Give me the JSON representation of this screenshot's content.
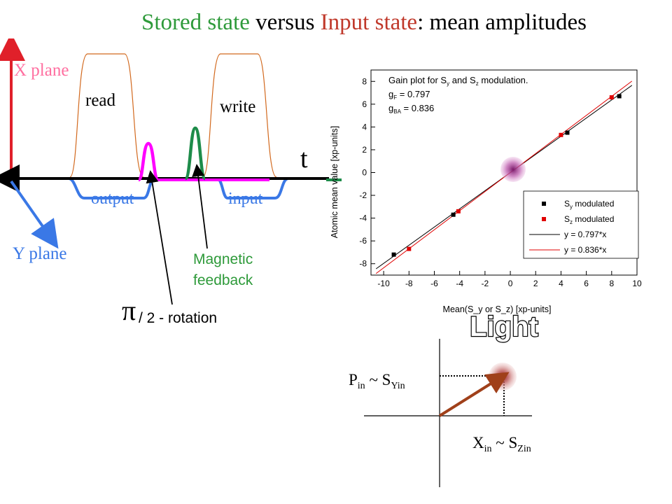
{
  "title": {
    "part1": "Stored state",
    "part2": " versus ",
    "part3": "Input state",
    "part4": ": mean amplitudes"
  },
  "left_diagram": {
    "x_plane": "X plane",
    "y_plane": "Y plane",
    "read": "read",
    "write": "write",
    "t": "t",
    "output": "output",
    "input": "input",
    "magnetic_line1": "Magnetic",
    "magnetic_line2": "feedback",
    "pi_symbol": "π",
    "rotation": "/ 2 - rotation",
    "colors": {
      "x_axis": "#e0202a",
      "y_axis": "#3a78e6",
      "pulse": "#d2691e",
      "pi_pulse": "#ff00ff",
      "feedback_pulse": "#1e8c4a",
      "x_label": "#ff6fa0",
      "y_label": "#3a78e6",
      "green_label": "#2e9a3a"
    }
  },
  "chart_data": {
    "type": "scatter",
    "xlabel": "Mean(S_y or S_z) [xp-units]",
    "ylabel": "Atomic mean value [xp-units]",
    "xlim": [
      -11,
      10
    ],
    "ylim": [
      -9,
      9
    ],
    "x_ticks": [
      -10,
      -8,
      -6,
      -4,
      -2,
      0,
      2,
      4,
      6,
      8,
      10
    ],
    "y_ticks": [
      -8,
      -6,
      -4,
      -2,
      0,
      2,
      4,
      6,
      8
    ],
    "annotation": {
      "line1": "Gain plot for S",
      "line1_sub1": "y",
      "line1_mid": " and S",
      "line1_sub2": "z",
      "line1_end": " modulation.",
      "line2": "g",
      "line2_sub": "F",
      "line2_val": " = 0.797",
      "line3": "g",
      "line3_sub": "BA",
      "line3_val": " = 0.836"
    },
    "series": [
      {
        "name": "S_y modulated",
        "kind": "points",
        "color": "#000000",
        "x": [
          -9.2,
          -4.5,
          8.6,
          4.5
        ],
        "y": [
          -7.2,
          -3.7,
          6.7,
          3.5
        ]
      },
      {
        "name": "S_z modulated",
        "kind": "points",
        "color": "#e00000",
        "x": [
          -8.0,
          -4.1,
          8.0,
          4.0
        ],
        "y": [
          -6.7,
          -3.4,
          6.6,
          3.3
        ]
      },
      {
        "name": "y = 0.797*x",
        "kind": "line",
        "color": "#000000",
        "slope": 0.797
      },
      {
        "name": "y = 0.836*x",
        "kind": "line",
        "color": "#e00000",
        "slope": 0.836
      }
    ],
    "legend": [
      {
        "main": "S",
        "sub": "y",
        "rest": " modulated"
      },
      {
        "main": "S",
        "sub": "z",
        "rest": " modulated"
      },
      {
        "main": "y = 0.797*x",
        "sub": "",
        "rest": ""
      },
      {
        "main": "y = 0.836*x",
        "sub": "",
        "rest": ""
      }
    ],
    "legend_position": "bottom-right",
    "grid": false
  },
  "light_diagram": {
    "heading": "Light",
    "p_label": "P",
    "p_sub": "in",
    "p_mid": " ~ S",
    "p_sub2": "Yin",
    "x_label": "X",
    "x_sub": "in",
    "x_mid": " ~ S",
    "x_sub2": "Zin",
    "arrow_color": "#a0401a"
  }
}
